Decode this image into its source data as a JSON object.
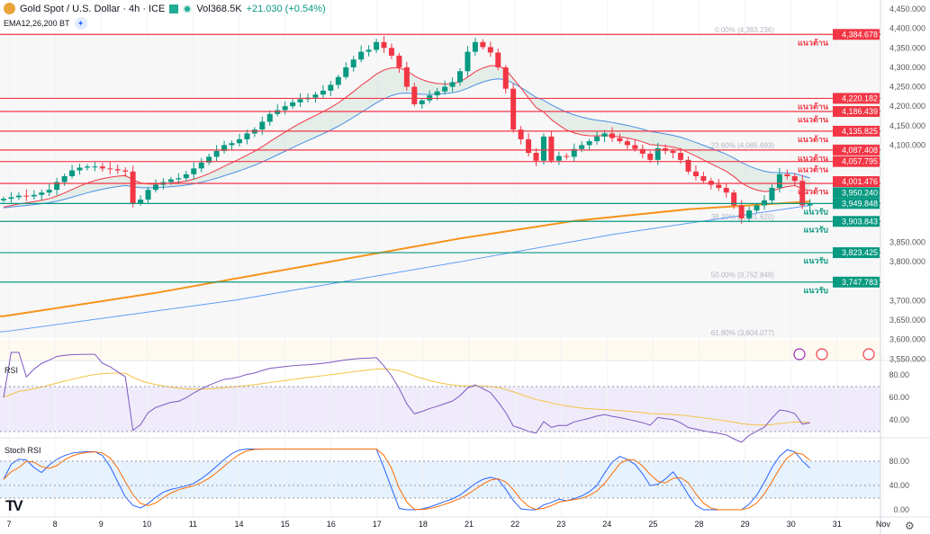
{
  "header": {
    "symbol": "Gold Spot / U.S. Dollar · 4h · ICE",
    "volume_label": "Vol",
    "volume": "368.5K",
    "change": "+21.030 (+0.54%)",
    "indicator": "EMA12,26,200 BT"
  },
  "panes": {
    "rsi_label": "RSI",
    "stoch_label": "Stoch RSI"
  },
  "colors": {
    "up": "#089981",
    "down": "#f23645",
    "ema_fast": "#f23645",
    "ema_slow": "#4a90e2",
    "ema200": "#f7931a",
    "rsi": "#7e57c2",
    "rsi_ma": "#f5c242",
    "k": "#2962ff",
    "d": "#ff6d00"
  },
  "chart_data": {
    "type": "candlestick",
    "timeframe": "4h",
    "x_ticks": [
      "7",
      "8",
      "9",
      "10",
      "11",
      "14",
      "15",
      "16",
      "17",
      "18",
      "21",
      "22",
      "23",
      "24",
      "25",
      "28",
      "29",
      "30",
      "31",
      "Nov"
    ],
    "y_ticks": [
      "4,450.000",
      "4,400.000",
      "4,350.000",
      "4,300.000",
      "4,250.000",
      "4,200.000",
      "4,150.000",
      "4,100.000",
      "3,850.000",
      "3,800.000",
      "3,700.000",
      "3,650.000",
      "3,600.000",
      "3,550.000"
    ],
    "ylim": [
      3545,
      4465
    ],
    "closes": [
      3962,
      3966,
      3970,
      3968,
      3972,
      3978,
      3985,
      4005,
      4020,
      4035,
      4042,
      4045,
      4045,
      4040,
      4038,
      4035,
      4032,
      3950,
      3960,
      3985,
      3998,
      4005,
      4012,
      4015,
      4025,
      4040,
      4055,
      4070,
      4085,
      4100,
      4105,
      4115,
      4130,
      4140,
      4160,
      4180,
      4190,
      4200,
      4210,
      4218,
      4222,
      4230,
      4240,
      4255,
      4275,
      4300,
      4320,
      4340,
      4345,
      4365,
      4350,
      4330,
      4300,
      4250,
      4205,
      4215,
      4228,
      4238,
      4250,
      4262,
      4290,
      4340,
      4365,
      4352,
      4338,
      4300,
      4245,
      4140,
      4115,
      4080,
      4060,
      4122,
      4060,
      4072,
      4070,
      4090,
      4100,
      4110,
      4122,
      4130,
      4118,
      4110,
      4100,
      4090,
      4078,
      4062,
      4092,
      4085,
      4080,
      4062,
      4032,
      4020,
      4008,
      3998,
      3990,
      3978,
      3945,
      3912,
      3932,
      3945,
      3958,
      3990,
      4025,
      4020,
      4008,
      3945,
      3950
    ],
    "levels": {
      "resistance": [
        {
          "price": 4384.678,
          "label": "4,384.678",
          "text": "แนวต้าน"
        },
        {
          "price": 4220.182,
          "label": "4,220.182",
          "text": "แนวต้าน"
        },
        {
          "price": 4186.439,
          "label": "4,186.439",
          "text": "แนวต้าน"
        },
        {
          "price": 4135.825,
          "label": "4,135.825",
          "text": "แนวต้าน"
        },
        {
          "price": 4087.408,
          "label": "4,087.408",
          "text": "แนวต้าน"
        },
        {
          "price": 4057.795,
          "label": "4,057.795",
          "text": "แนวต้าน"
        },
        {
          "price": 4001.476,
          "label": "4,001.476",
          "text": "แนวต้าน"
        }
      ],
      "support": [
        {
          "price": 3949.848,
          "label": "3,949.848",
          "text": "แนวรับ"
        },
        {
          "price": 3903.843,
          "label": "3,903.843",
          "text": "แนวรับ"
        },
        {
          "price": 3823.425,
          "label": "3,823.425",
          "text": "แนวรับ"
        },
        {
          "price": 3747.783,
          "label": "3,747.783",
          "text": "แนวรับ"
        }
      ]
    },
    "last_price": {
      "price": 3950.24,
      "label": "3,950.240"
    },
    "fib": [
      {
        "price": 4383.236,
        "label": "0.00% (4,383.236)"
      },
      {
        "price": 4085.693,
        "label": "23.60% (4,085.693)"
      },
      {
        "price": 3901.62,
        "label": "38.20% (3,901.620)"
      },
      {
        "price": 3752.848,
        "label": "50.00% (3,752.848)"
      },
      {
        "price": 3604.077,
        "label": "61.80% (3,604.077)"
      }
    ],
    "ema200": [
      [
        0,
        3660
      ],
      [
        20,
        3720
      ],
      [
        40,
        3790
      ],
      [
        60,
        3860
      ],
      [
        75,
        3905
      ],
      [
        90,
        3935
      ],
      [
        106,
        3955
      ]
    ],
    "long_ma": [
      [
        0,
        3620
      ],
      [
        30,
        3700
      ],
      [
        60,
        3800
      ],
      [
        80,
        3870
      ],
      [
        106,
        3945
      ]
    ],
    "rsi_ticks": [
      "80.00",
      "60.00",
      "40.00"
    ],
    "stoch_ticks": [
      "80.00",
      "40.00",
      "0.00"
    ]
  }
}
